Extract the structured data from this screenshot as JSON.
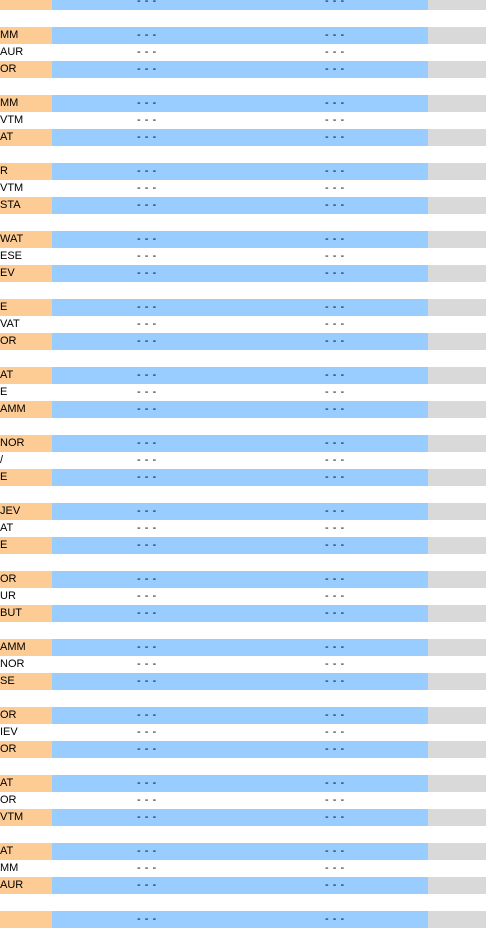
{
  "colors": {
    "label_band": "#fdcb94",
    "value_band": "#99ccff",
    "end_band": "#d9d9d9"
  },
  "placeholder": "- - -",
  "groups": [
    {
      "rows": [
        {
          "label": "",
          "band": true
        }
      ]
    },
    {
      "rows": [
        {
          "label": "MM",
          "band": true
        },
        {
          "label": "AUR",
          "band": false
        },
        {
          "label": "OR",
          "band": true
        }
      ]
    },
    {
      "rows": [
        {
          "label": "MM",
          "band": true
        },
        {
          "label": "VTM",
          "band": false
        },
        {
          "label": "AT",
          "band": true
        }
      ]
    },
    {
      "rows": [
        {
          "label": "R",
          "band": true
        },
        {
          "label": "VTM",
          "band": false
        },
        {
          "label": "STA",
          "band": true
        }
      ]
    },
    {
      "rows": [
        {
          "label": "WAT",
          "band": true
        },
        {
          "label": "ESE",
          "band": false
        },
        {
          "label": "EV",
          "band": true
        }
      ]
    },
    {
      "rows": [
        {
          "label": "E",
          "band": true
        },
        {
          "label": "VAT",
          "band": false
        },
        {
          "label": "OR",
          "band": true
        }
      ]
    },
    {
      "rows": [
        {
          "label": "AT",
          "band": true
        },
        {
          "label": "E",
          "band": false
        },
        {
          "label": "AMM",
          "band": true
        }
      ]
    },
    {
      "rows": [
        {
          "label": "NOR",
          "band": true
        },
        {
          "label": "/",
          "band": false
        },
        {
          "label": "E",
          "band": true
        }
      ]
    },
    {
      "rows": [
        {
          "label": "JEV",
          "band": true
        },
        {
          "label": "AT",
          "band": false
        },
        {
          "label": "E",
          "band": true
        }
      ]
    },
    {
      "rows": [
        {
          "label": "OR",
          "band": true
        },
        {
          "label": "UR",
          "band": false
        },
        {
          "label": "BUT",
          "band": true
        }
      ]
    },
    {
      "rows": [
        {
          "label": "AMM",
          "band": true
        },
        {
          "label": "NOR",
          "band": false
        },
        {
          "label": "SE",
          "band": true
        }
      ]
    },
    {
      "rows": [
        {
          "label": "OR",
          "band": true
        },
        {
          "label": "IEV",
          "band": false
        },
        {
          "label": "OR",
          "band": true
        }
      ]
    },
    {
      "rows": [
        {
          "label": "AT",
          "band": true
        },
        {
          "label": "OR",
          "band": false
        },
        {
          "label": "VTM",
          "band": true
        }
      ]
    },
    {
      "rows": [
        {
          "label": "AT",
          "band": true
        },
        {
          "label": "MM",
          "band": false
        },
        {
          "label": "AUR",
          "band": true
        }
      ]
    },
    {
      "rows": [
        {
          "label": "",
          "band": true
        }
      ]
    }
  ]
}
